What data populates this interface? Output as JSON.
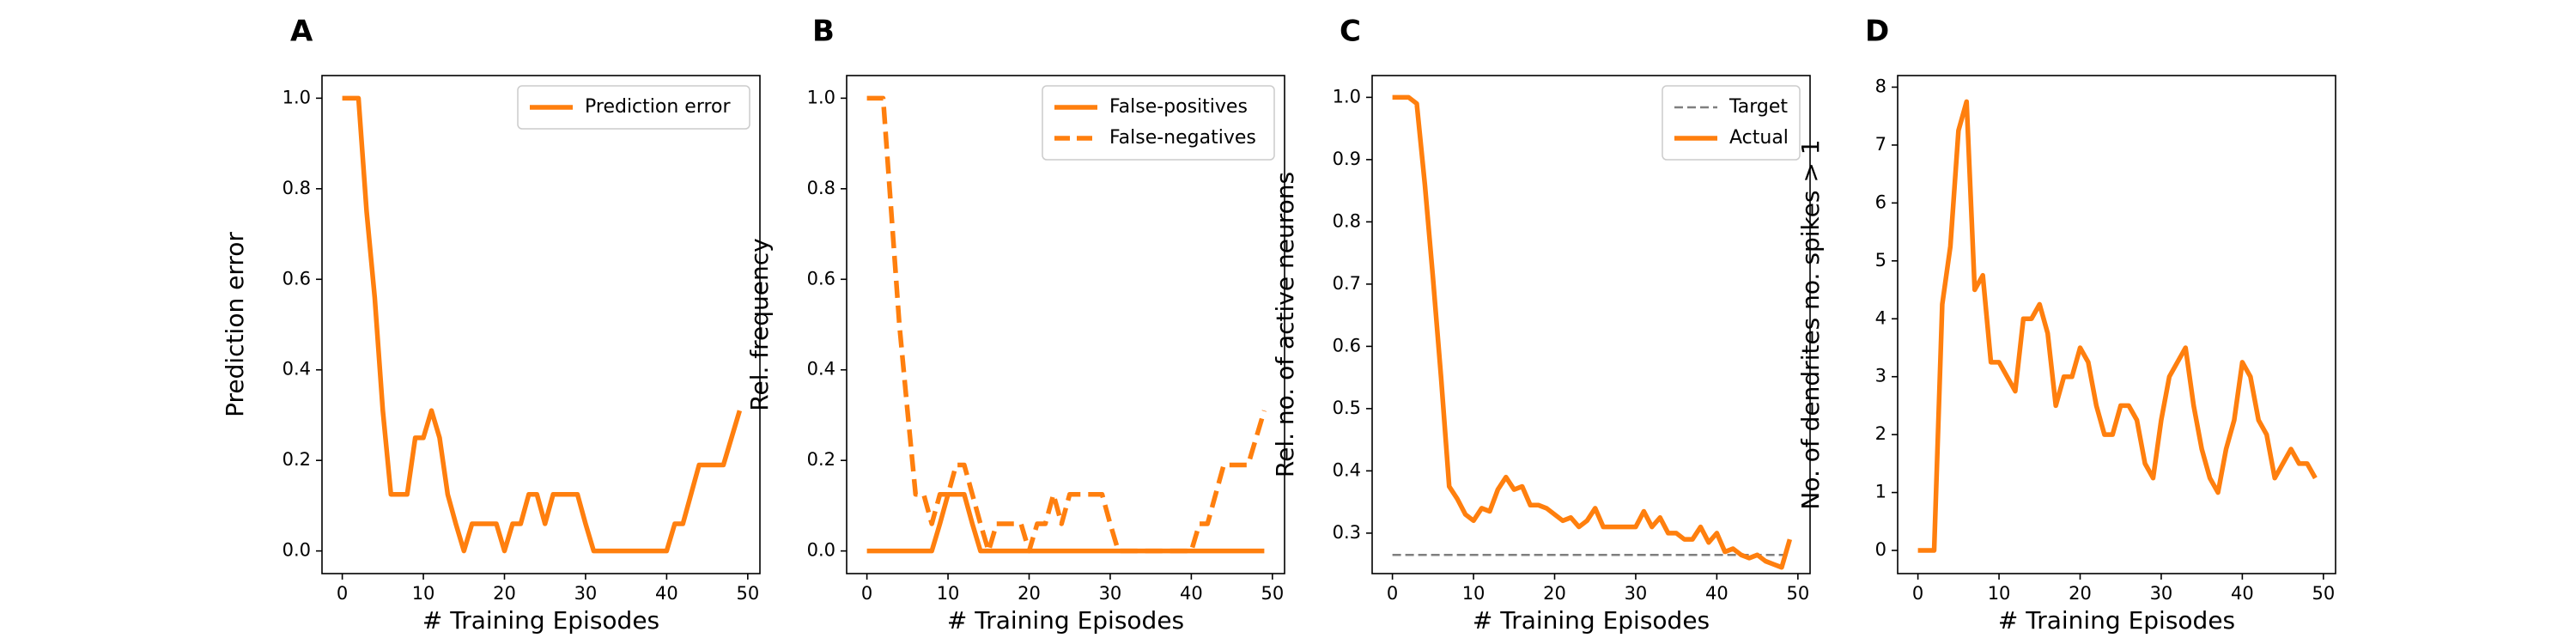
{
  "chart_data": [
    {
      "panel": "A",
      "type": "line",
      "xlabel": "# Training Episodes",
      "ylabel": "Prediction error",
      "xlim": [
        -2.5,
        51.5
      ],
      "ylim": [
        -0.05,
        1.05
      ],
      "xticks": [
        0,
        10,
        20,
        30,
        40,
        50
      ],
      "yticks": [
        0.0,
        0.2,
        0.4,
        0.6,
        0.8,
        1.0
      ],
      "ytick_labels": [
        "0.0",
        "0.2",
        "0.4",
        "0.6",
        "0.8",
        "1.0"
      ],
      "legend": "top-right",
      "series": [
        {
          "name": "Prediction error",
          "color": "#ff7f0e",
          "dash": "solid",
          "x": [
            0,
            1,
            2,
            3,
            4,
            5,
            6,
            7,
            8,
            9,
            10,
            11,
            12,
            13,
            14,
            15,
            16,
            17,
            18,
            19,
            20,
            21,
            22,
            23,
            24,
            25,
            26,
            27,
            28,
            29,
            30,
            31,
            32,
            33,
            34,
            35,
            36,
            37,
            38,
            39,
            40,
            41,
            42,
            43,
            44,
            45,
            46,
            47,
            48,
            49
          ],
          "y": [
            1.0,
            1.0,
            1.0,
            0.75,
            0.56,
            0.31,
            0.125,
            0.125,
            0.125,
            0.25,
            0.25,
            0.31,
            0.25,
            0.125,
            0.06,
            0.0,
            0.06,
            0.06,
            0.06,
            0.06,
            0.0,
            0.06,
            0.06,
            0.125,
            0.125,
            0.06,
            0.125,
            0.125,
            0.125,
            0.125,
            0.06,
            0.0,
            0.0,
            0.0,
            0.0,
            0.0,
            0.0,
            0.0,
            0.0,
            0.0,
            0.0,
            0.06,
            0.06,
            0.125,
            0.19,
            0.19,
            0.19,
            0.19,
            0.25,
            0.31
          ]
        }
      ]
    },
    {
      "panel": "B",
      "type": "line",
      "xlabel": "# Training Episodes",
      "ylabel": "Rel. frequency",
      "xlim": [
        -2.5,
        51.5
      ],
      "ylim": [
        -0.05,
        1.05
      ],
      "xticks": [
        0,
        10,
        20,
        30,
        40,
        50
      ],
      "yticks": [
        0.0,
        0.2,
        0.4,
        0.6,
        0.8,
        1.0
      ],
      "ytick_labels": [
        "0.0",
        "0.2",
        "0.4",
        "0.6",
        "0.8",
        "1.0"
      ],
      "legend": "top-right",
      "series": [
        {
          "name": "False-positives",
          "color": "#ff7f0e",
          "dash": "solid",
          "x": [
            0,
            1,
            2,
            3,
            4,
            5,
            6,
            7,
            8,
            9,
            10,
            11,
            12,
            13,
            14,
            15,
            16,
            17,
            18,
            19,
            20,
            21,
            22,
            23,
            24,
            25,
            26,
            27,
            28,
            29,
            30,
            31,
            32,
            33,
            34,
            35,
            36,
            37,
            38,
            39,
            40,
            41,
            42,
            43,
            44,
            45,
            46,
            47,
            48,
            49
          ],
          "y": [
            0,
            0,
            0,
            0,
            0,
            0,
            0,
            0,
            0,
            0.06,
            0.125,
            0.125,
            0.125,
            0.06,
            0,
            0,
            0,
            0,
            0,
            0,
            0,
            0,
            0,
            0,
            0,
            0,
            0,
            0,
            0,
            0,
            0,
            0,
            0,
            0,
            0,
            0,
            0,
            0,
            0,
            0,
            0,
            0,
            0,
            0,
            0,
            0,
            0,
            0,
            0,
            0
          ]
        },
        {
          "name": "False-negatives",
          "color": "#ff7f0e",
          "dash": "dashed",
          "x": [
            0,
            1,
            2,
            3,
            4,
            5,
            6,
            7,
            8,
            9,
            10,
            11,
            12,
            13,
            14,
            15,
            16,
            17,
            18,
            19,
            20,
            21,
            22,
            23,
            24,
            25,
            26,
            27,
            28,
            29,
            30,
            31,
            32,
            33,
            34,
            35,
            36,
            37,
            38,
            39,
            40,
            41,
            42,
            43,
            44,
            45,
            46,
            47,
            48,
            49
          ],
          "y": [
            1.0,
            1.0,
            1.0,
            0.75,
            0.5,
            0.31,
            0.125,
            0.125,
            0.06,
            0.125,
            0.125,
            0.19,
            0.19,
            0.125,
            0.06,
            0.0,
            0.06,
            0.06,
            0.06,
            0.06,
            0.0,
            0.06,
            0.06,
            0.125,
            0.06,
            0.125,
            0.125,
            0.125,
            0.125,
            0.125,
            0.06,
            0.0,
            0.0,
            0.0,
            0.0,
            0.0,
            0.0,
            0.0,
            0.0,
            0.0,
            0.0,
            0.06,
            0.06,
            0.125,
            0.19,
            0.19,
            0.19,
            0.19,
            0.25,
            0.31
          ]
        }
      ]
    },
    {
      "panel": "C",
      "type": "line",
      "xlabel": "# Training Episodes",
      "ylabel": "Rel. no. of active neurons",
      "xlim": [
        -2.5,
        51.5
      ],
      "ylim": [
        0.235,
        1.035
      ],
      "xticks": [
        0,
        10,
        20,
        30,
        40,
        50
      ],
      "yticks": [
        0.3,
        0.4,
        0.5,
        0.6,
        0.7,
        0.8,
        0.9,
        1.0
      ],
      "ytick_labels": [
        "0.3",
        "0.4",
        "0.5",
        "0.6",
        "0.7",
        "0.8",
        "0.9",
        "1.0"
      ],
      "legend": "top-right",
      "series": [
        {
          "name": "Target",
          "color": "#7f7f7f",
          "dash": "dashed",
          "x": [
            0,
            49
          ],
          "y": [
            0.265,
            0.265
          ]
        },
        {
          "name": "Actual",
          "color": "#ff7f0e",
          "dash": "solid",
          "x": [
            0,
            1,
            2,
            3,
            4,
            5,
            6,
            7,
            8,
            9,
            10,
            11,
            12,
            13,
            14,
            15,
            16,
            17,
            18,
            19,
            20,
            21,
            22,
            23,
            24,
            25,
            26,
            27,
            28,
            29,
            30,
            31,
            32,
            33,
            34,
            35,
            36,
            37,
            38,
            39,
            40,
            41,
            42,
            43,
            44,
            45,
            46,
            47,
            48,
            49
          ],
          "y": [
            1.0,
            1.0,
            1.0,
            0.99,
            0.86,
            0.71,
            0.55,
            0.375,
            0.355,
            0.33,
            0.32,
            0.34,
            0.335,
            0.37,
            0.39,
            0.37,
            0.375,
            0.345,
            0.345,
            0.34,
            0.33,
            0.32,
            0.325,
            0.31,
            0.32,
            0.34,
            0.31,
            0.31,
            0.31,
            0.31,
            0.31,
            0.335,
            0.31,
            0.325,
            0.3,
            0.3,
            0.29,
            0.29,
            0.31,
            0.285,
            0.3,
            0.27,
            0.275,
            0.265,
            0.26,
            0.265,
            0.255,
            0.25,
            0.245,
            0.29
          ]
        }
      ]
    },
    {
      "panel": "D",
      "type": "line",
      "xlabel": "# Training Episodes",
      "ylabel": "No. of dendrites no. spikes > 1",
      "xlim": [
        -2.5,
        51.5
      ],
      "ylim": [
        -0.4,
        8.2
      ],
      "xticks": [
        0,
        10,
        20,
        30,
        40,
        50
      ],
      "yticks": [
        0,
        1,
        2,
        3,
        4,
        5,
        6,
        7,
        8
      ],
      "ytick_labels": [
        "0",
        "1",
        "2",
        "3",
        "4",
        "5",
        "6",
        "7",
        "8"
      ],
      "legend": "none",
      "series": [
        {
          "color": "#ff7f0e",
          "dash": "solid",
          "x": [
            0,
            1,
            2,
            3,
            4,
            5,
            6,
            7,
            8,
            9,
            10,
            11,
            12,
            13,
            14,
            15,
            16,
            17,
            18,
            19,
            20,
            21,
            22,
            23,
            24,
            25,
            26,
            27,
            28,
            29,
            30,
            31,
            32,
            33,
            34,
            35,
            36,
            37,
            38,
            39,
            40,
            41,
            42,
            43,
            44,
            45,
            46,
            47,
            48,
            49
          ],
          "y": [
            0,
            0,
            0,
            4.25,
            5.25,
            7.25,
            7.75,
            4.5,
            4.75,
            3.25,
            3.25,
            3.0,
            2.75,
            4.0,
            4.0,
            4.25,
            3.75,
            2.5,
            3.0,
            3.0,
            3.5,
            3.25,
            2.5,
            2.0,
            2.0,
            2.5,
            2.5,
            2.25,
            1.5,
            1.25,
            2.25,
            3.0,
            3.25,
            3.5,
            2.5,
            1.75,
            1.25,
            1.0,
            1.75,
            2.25,
            3.25,
            3.0,
            2.25,
            2.0,
            1.25,
            1.5,
            1.75,
            1.5,
            1.5,
            1.25
          ]
        }
      ]
    }
  ],
  "panel_labels": [
    "A",
    "B",
    "C",
    "D"
  ]
}
